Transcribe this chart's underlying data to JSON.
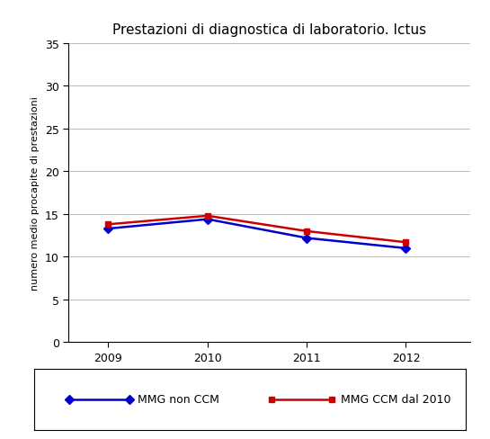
{
  "title": "Prestazioni di diagnostica di laboratorio. Ictus",
  "xlabel": "",
  "ylabel": "numero medio procapite di prestazioni",
  "years": [
    2009,
    2010,
    2011,
    2012
  ],
  "series": [
    {
      "label": "MMG non CCM",
      "values": [
        13.3,
        14.4,
        12.2,
        11.0
      ],
      "color": "#0000CC",
      "marker": "D",
      "markersize": 5,
      "linewidth": 1.8
    },
    {
      "label": "MMG CCM dal 2010",
      "values": [
        13.8,
        14.8,
        13.0,
        11.7
      ],
      "color": "#CC0000",
      "marker": "s",
      "markersize": 5,
      "linewidth": 1.8
    }
  ],
  "ylim": [
    0,
    35
  ],
  "yticks": [
    0,
    5,
    10,
    15,
    20,
    25,
    30,
    35
  ],
  "xticks": [
    2009,
    2010,
    2011,
    2012
  ],
  "background_color": "#FFFFFF",
  "grid_color": "#BBBBBB",
  "title_fontsize": 11,
  "axis_label_fontsize": 8,
  "tick_fontsize": 9,
  "legend_fontsize": 9
}
